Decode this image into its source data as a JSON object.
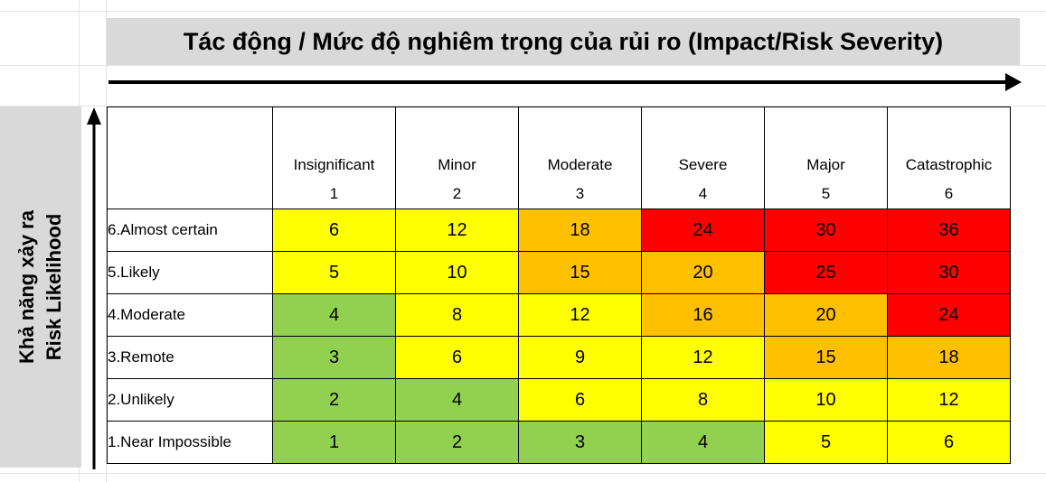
{
  "chart_data": {
    "type": "heatmap",
    "title": "Tác động / Mức độ nghiêm trọng của rủi ro (Impact/Risk Severity)",
    "ylabel_lines": [
      "Khả năng xảy ra",
      "Risk Likelihood"
    ],
    "columns": [
      {
        "name": "Insignificant",
        "number": "1"
      },
      {
        "name": "Minor",
        "number": "2"
      },
      {
        "name": "Moderate",
        "number": "3"
      },
      {
        "name": "Severe",
        "number": "4"
      },
      {
        "name": "Major",
        "number": "5"
      },
      {
        "name": "Catastrophic",
        "number": "6"
      }
    ],
    "rows": [
      {
        "label": "6.Almost certain",
        "values": [
          6,
          12,
          18,
          24,
          30,
          36
        ],
        "levels": [
          "yellow",
          "yellow",
          "orange",
          "red",
          "red",
          "red"
        ]
      },
      {
        "label": "5.Likely",
        "values": [
          5,
          10,
          15,
          20,
          25,
          30
        ],
        "levels": [
          "yellow",
          "yellow",
          "orange",
          "orange",
          "red",
          "red"
        ]
      },
      {
        "label": "4.Moderate",
        "values": [
          4,
          8,
          12,
          16,
          20,
          24
        ],
        "levels": [
          "green",
          "yellow",
          "yellow",
          "orange",
          "orange",
          "red"
        ]
      },
      {
        "label": "3.Remote",
        "values": [
          3,
          6,
          9,
          12,
          15,
          18
        ],
        "levels": [
          "green",
          "yellow",
          "yellow",
          "yellow",
          "orange",
          "orange"
        ]
      },
      {
        "label": "2.Unlikely",
        "values": [
          2,
          4,
          6,
          8,
          10,
          12
        ],
        "levels": [
          "green",
          "green",
          "yellow",
          "yellow",
          "yellow",
          "yellow"
        ]
      },
      {
        "label": "1.Near Impossible",
        "values": [
          1,
          2,
          3,
          4,
          5,
          6
        ],
        "levels": [
          "green",
          "green",
          "green",
          "green",
          "yellow",
          "yellow"
        ]
      }
    ],
    "colors": {
      "green": "#92d050",
      "yellow": "#ffff00",
      "orange": "#ffc000",
      "red": "#ff0000",
      "header": "#d9d9d9"
    }
  }
}
